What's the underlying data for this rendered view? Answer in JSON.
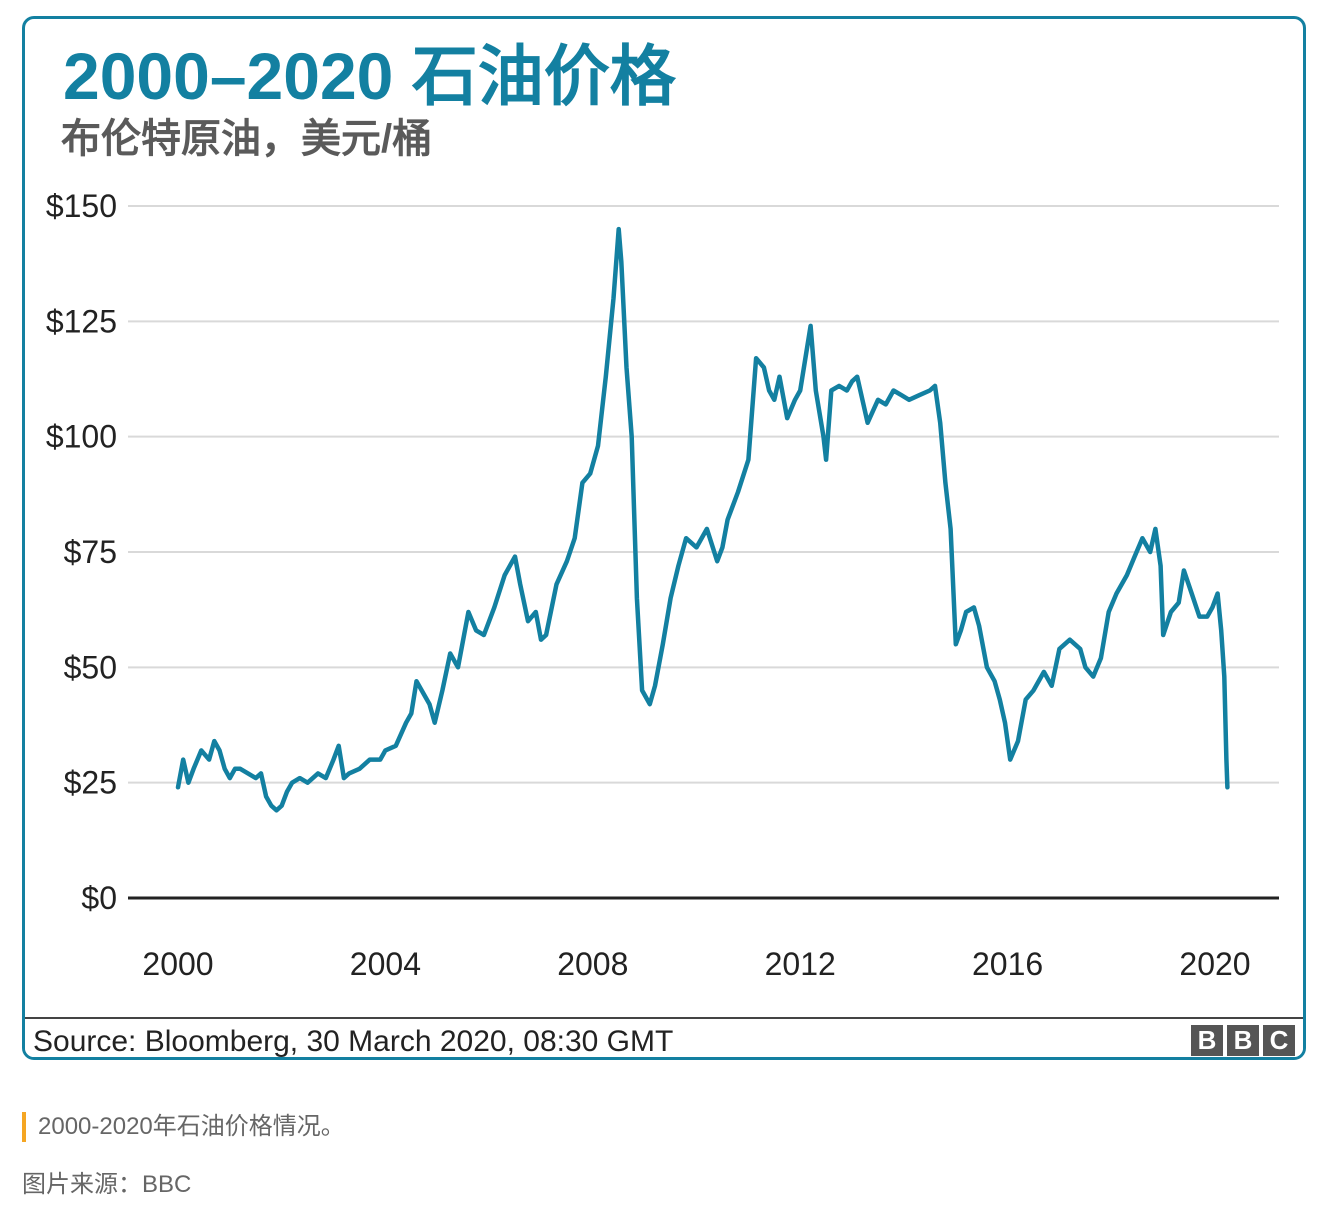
{
  "chart_data": {
    "type": "line",
    "title": "2000–2020 石油价格",
    "subtitle": "布伦特原油，美元/桶",
    "xlabel": "",
    "ylabel": "",
    "xlim": [
      2000,
      2020.25
    ],
    "ylim": [
      0,
      150
    ],
    "yticks": [
      0,
      25,
      50,
      75,
      100,
      125,
      150
    ],
    "ytick_labels": [
      "$0",
      "$25",
      "$50",
      "$75",
      "$100",
      "$125",
      "$150"
    ],
    "xticks": [
      2000,
      2004,
      2008,
      2012,
      2016,
      2020
    ],
    "xtick_labels": [
      "2000",
      "2004",
      "2008",
      "2012",
      "2016",
      "2020"
    ],
    "grid": true,
    "series": [
      {
        "name": "Brent crude (USD/barrel)",
        "color": "#1380A1",
        "x": [
          2000.0,
          2000.1,
          2000.2,
          2000.3,
          2000.45,
          2000.6,
          2000.7,
          2000.8,
          2000.9,
          2001.0,
          2001.1,
          2001.2,
          2001.35,
          2001.5,
          2001.6,
          2001.7,
          2001.8,
          2001.9,
          2002.0,
          2002.1,
          2002.2,
          2002.35,
          2002.5,
          2002.7,
          2002.85,
          2003.0,
          2003.1,
          2003.2,
          2003.3,
          2003.5,
          2003.7,
          2003.9,
          2004.0,
          2004.2,
          2004.4,
          2004.5,
          2004.6,
          2004.75,
          2004.85,
          2004.95,
          2005.1,
          2005.25,
          2005.4,
          2005.6,
          2005.75,
          2005.9,
          2006.1,
          2006.3,
          2006.5,
          2006.6,
          2006.75,
          2006.9,
          2007.0,
          2007.1,
          2007.3,
          2007.5,
          2007.65,
          2007.8,
          2007.95,
          2008.1,
          2008.25,
          2008.4,
          2008.5,
          2008.55,
          2008.65,
          2008.75,
          2008.85,
          2008.95,
          2009.0,
          2009.1,
          2009.2,
          2009.35,
          2009.5,
          2009.65,
          2009.8,
          2010.0,
          2010.2,
          2010.4,
          2010.5,
          2010.6,
          2010.8,
          2011.0,
          2011.15,
          2011.3,
          2011.4,
          2011.5,
          2011.6,
          2011.75,
          2011.9,
          2012.0,
          2012.2,
          2012.3,
          2012.45,
          2012.5,
          2012.6,
          2012.75,
          2012.9,
          2013.0,
          2013.1,
          2013.3,
          2013.5,
          2013.65,
          2013.8,
          2013.95,
          2014.1,
          2014.3,
          2014.5,
          2014.6,
          2014.7,
          2014.8,
          2014.9,
          2015.0,
          2015.1,
          2015.2,
          2015.35,
          2015.45,
          2015.6,
          2015.75,
          2015.85,
          2015.95,
          2016.05,
          2016.2,
          2016.35,
          2016.5,
          2016.7,
          2016.85,
          2017.0,
          2017.2,
          2017.4,
          2017.5,
          2017.65,
          2017.8,
          2017.95,
          2018.1,
          2018.3,
          2018.45,
          2018.6,
          2018.75,
          2018.85,
          2018.95,
          2019.0,
          2019.15,
          2019.3,
          2019.4,
          2019.55,
          2019.7,
          2019.85,
          2019.95,
          2020.05,
          2020.12,
          2020.18,
          2020.22,
          2020.24
        ],
        "y": [
          24,
          30,
          25,
          28,
          32,
          30,
          34,
          32,
          28,
          26,
          28,
          28,
          27,
          26,
          27,
          22,
          20,
          19,
          20,
          23,
          25,
          26,
          25,
          27,
          26,
          30,
          33,
          26,
          27,
          28,
          30,
          30,
          32,
          33,
          38,
          40,
          47,
          44,
          42,
          38,
          45,
          53,
          50,
          62,
          58,
          57,
          63,
          70,
          74,
          68,
          60,
          62,
          56,
          57,
          68,
          73,
          78,
          90,
          92,
          98,
          113,
          130,
          145,
          138,
          115,
          100,
          65,
          45,
          44,
          42,
          46,
          55,
          65,
          72,
          78,
          76,
          80,
          73,
          76,
          82,
          88,
          95,
          117,
          115,
          110,
          108,
          113,
          104,
          108,
          110,
          124,
          110,
          100,
          95,
          110,
          111,
          110,
          112,
          113,
          103,
          108,
          107,
          110,
          109,
          108,
          109,
          110,
          111,
          103,
          90,
          80,
          55,
          58,
          62,
          63,
          59,
          50,
          47,
          43,
          38,
          30,
          34,
          43,
          45,
          49,
          46,
          54,
          56,
          54,
          50,
          48,
          52,
          62,
          66,
          70,
          74,
          78,
          75,
          80,
          72,
          57,
          62,
          64,
          71,
          66,
          61,
          61,
          63,
          66,
          58,
          48,
          30,
          24
        ]
      }
    ]
  },
  "source": "Source: Bloomberg, 30 March 2020, 08:30 GMT",
  "logo_letters": [
    "B",
    "B",
    "C"
  ],
  "caption": "2000-2020年石油价格情况。",
  "credit": "图片来源：BBC"
}
